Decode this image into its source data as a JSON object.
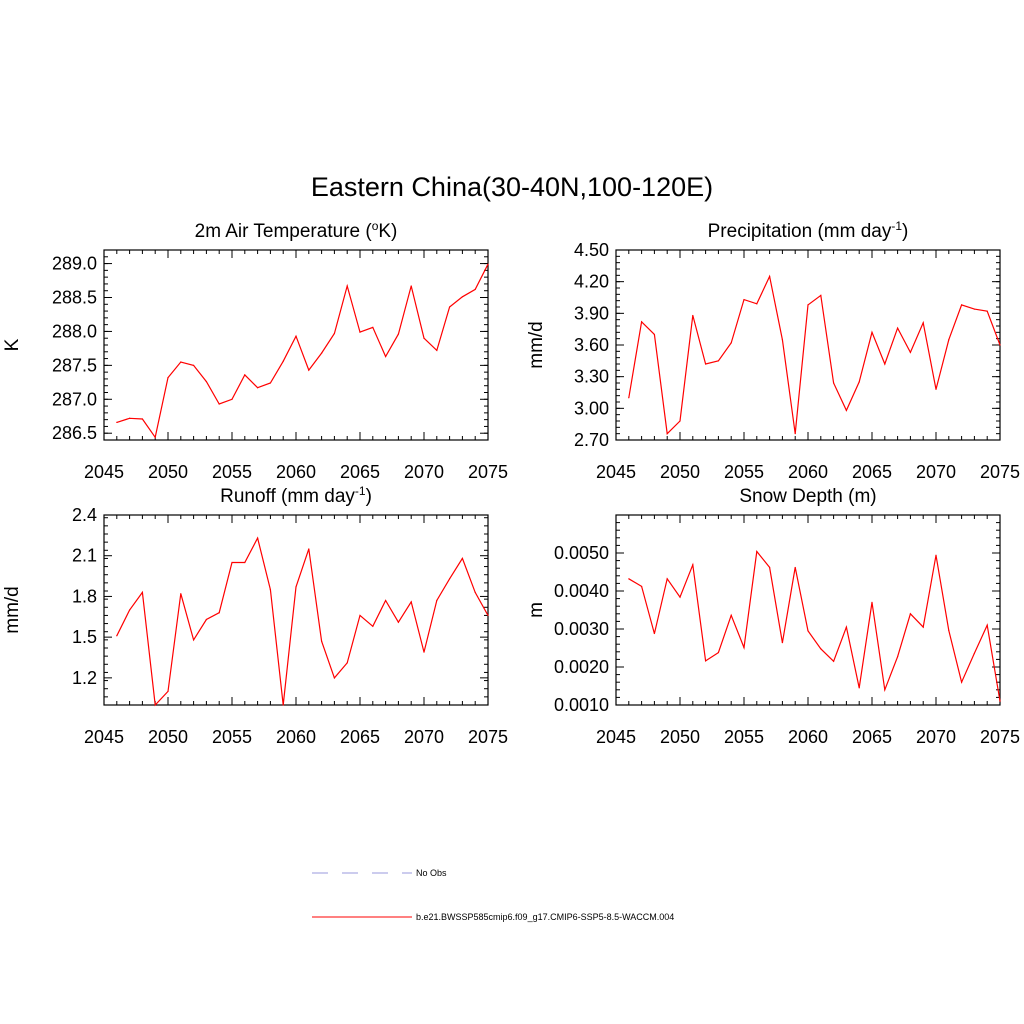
{
  "figure_title": "Eastern China(30-40N,100-120E)",
  "colors": {
    "model": "#ff0000",
    "obs": "#9999dd",
    "axis": "#000000"
  },
  "chart_data": [
    {
      "type": "line",
      "id": "temp",
      "title_main": "2m Air Temperature (",
      "title_sup": "o",
      "title_end": "K)",
      "ylabel": "K",
      "xlim": [
        2045,
        2075
      ],
      "ylim": [
        286.4,
        289.2
      ],
      "xticks": [
        "2045",
        "2050",
        "2055",
        "2060",
        "2065",
        "2070",
        "2075"
      ],
      "yticks": [
        "286.5",
        "287.0",
        "287.5",
        "288.0",
        "288.5",
        "289.0"
      ],
      "yminor_step": 0.1,
      "x": [
        2046,
        2047,
        2048,
        2049,
        2050,
        2051,
        2052,
        2053,
        2054,
        2055,
        2056,
        2057,
        2058,
        2059,
        2060,
        2061,
        2062,
        2063,
        2064,
        2065,
        2066,
        2067,
        2068,
        2069,
        2070,
        2071,
        2072,
        2073,
        2074,
        2075
      ],
      "values": [
        286.66,
        286.72,
        286.71,
        286.44,
        287.32,
        287.55,
        287.5,
        287.26,
        286.93,
        287.0,
        287.36,
        287.17,
        287.24,
        287.56,
        287.93,
        287.43,
        287.68,
        287.97,
        288.67,
        287.99,
        288.06,
        287.63,
        287.96,
        288.67,
        287.9,
        287.72,
        288.36,
        288.51,
        288.62,
        288.99
      ]
    },
    {
      "type": "line",
      "id": "precip",
      "title_main": "Precipitation (mm day",
      "title_sup": "-1",
      "title_end": ")",
      "ylabel": "mm/d",
      "xlim": [
        2045,
        2075
      ],
      "ylim": [
        2.7,
        4.5
      ],
      "xticks": [
        "2045",
        "2050",
        "2055",
        "2060",
        "2065",
        "2070",
        "2075"
      ],
      "yticks": [
        "2.70",
        "3.00",
        "3.30",
        "3.60",
        "3.90",
        "4.20",
        "4.50"
      ],
      "yminor_step": 0.06,
      "x": [
        2046,
        2047,
        2048,
        2049,
        2050,
        2051,
        2052,
        2053,
        2054,
        2055,
        2056,
        2057,
        2058,
        2059,
        2060,
        2061,
        2062,
        2063,
        2064,
        2065,
        2066,
        2067,
        2068,
        2069,
        2070,
        2071,
        2072,
        2073,
        2074,
        2075
      ],
      "values": [
        3.1,
        3.82,
        3.7,
        2.76,
        2.88,
        3.88,
        3.42,
        3.45,
        3.62,
        4.03,
        3.99,
        4.25,
        3.65,
        2.76,
        3.98,
        4.07,
        3.24,
        2.98,
        3.25,
        3.72,
        3.42,
        3.76,
        3.53,
        3.81,
        3.18,
        3.65,
        3.98,
        3.94,
        3.92,
        3.6
      ]
    },
    {
      "type": "line",
      "id": "runoff",
      "title_main": "Runoff (mm day",
      "title_sup": "-1",
      "title_end": ")",
      "ylabel": "mm/d",
      "xlim": [
        2045,
        2075
      ],
      "ylim": [
        1.0,
        2.4
      ],
      "xticks": [
        "2045",
        "2050",
        "2055",
        "2060",
        "2065",
        "2070",
        "2075"
      ],
      "yticks": [
        "1.2",
        "1.5",
        "1.8",
        "2.1",
        "2.4"
      ],
      "yminor_step": 0.06,
      "x": [
        2046,
        2047,
        2048,
        2049,
        2050,
        2051,
        2052,
        2053,
        2054,
        2055,
        2056,
        2057,
        2058,
        2059,
        2060,
        2061,
        2062,
        2063,
        2064,
        2065,
        2066,
        2067,
        2068,
        2069,
        2070,
        2071,
        2072,
        2073,
        2074,
        2075
      ],
      "values": [
        1.51,
        1.7,
        1.83,
        1.0,
        1.1,
        1.82,
        1.48,
        1.63,
        1.68,
        2.05,
        2.05,
        2.23,
        1.85,
        1.0,
        1.87,
        2.15,
        1.47,
        1.2,
        1.31,
        1.66,
        1.58,
        1.77,
        1.61,
        1.76,
        1.39,
        1.77,
        1.93,
        2.08,
        1.83,
        1.66
      ]
    },
    {
      "type": "line",
      "id": "snow",
      "title_main": "Snow Depth (m)",
      "title_sup": "",
      "title_end": "",
      "ylabel": "m",
      "xlim": [
        2045,
        2075
      ],
      "ylim": [
        0.001,
        0.006
      ],
      "xticks": [
        "2045",
        "2050",
        "2055",
        "2060",
        "2065",
        "2070",
        "2075"
      ],
      "yticks": [
        "0.0010",
        "0.0020",
        "0.0030",
        "0.0040",
        "0.0050"
      ],
      "yminor_step": 0.0002,
      "x": [
        2046,
        2047,
        2048,
        2049,
        2050,
        2051,
        2052,
        2053,
        2054,
        2055,
        2056,
        2057,
        2058,
        2059,
        2060,
        2061,
        2062,
        2063,
        2064,
        2065,
        2066,
        2067,
        2068,
        2069,
        2070,
        2071,
        2072,
        2073,
        2074,
        2075
      ],
      "values": [
        0.00432,
        0.00412,
        0.00288,
        0.00432,
        0.00384,
        0.00469,
        0.00216,
        0.00238,
        0.00336,
        0.00251,
        0.00504,
        0.00462,
        0.00264,
        0.00462,
        0.00295,
        0.00248,
        0.00215,
        0.00305,
        0.00145,
        0.0037,
        0.0014,
        0.00227,
        0.0034,
        0.00305,
        0.00494,
        0.00296,
        0.0016,
        0.00236,
        0.0031,
        0.0011
      ]
    }
  ],
  "legend": [
    {
      "label": "No Obs",
      "style": "dashed",
      "color": "#9999dd"
    },
    {
      "label": "b.e21.BWSSP585cmip6.f09_g17.CMIP6-SSP5-8.5-WACCM.004",
      "style": "solid",
      "color": "#ff0000"
    }
  ]
}
